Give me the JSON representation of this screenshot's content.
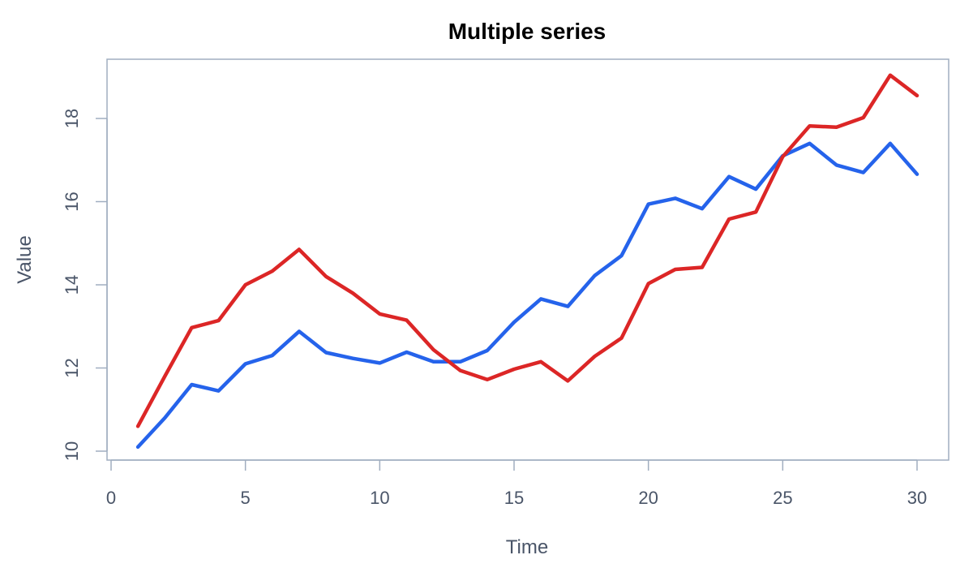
{
  "chart_data": {
    "type": "line",
    "title": "Multiple series",
    "xlabel": "Time",
    "ylabel": "Value",
    "xlim": [
      0,
      31
    ],
    "ylim": [
      9.8,
      19.4
    ],
    "x_ticks": [
      0,
      5,
      10,
      15,
      20,
      25,
      30
    ],
    "y_ticks": [
      10,
      12,
      14,
      16,
      18
    ],
    "grid": false,
    "legend": "none",
    "x": [
      1,
      2,
      3,
      4,
      5,
      6,
      7,
      8,
      9,
      10,
      11,
      12,
      13,
      14,
      15,
      16,
      17,
      18,
      19,
      20,
      21,
      22,
      23,
      24,
      25,
      26,
      27,
      28,
      29,
      30
    ],
    "series": [
      {
        "color": "#2563eb",
        "values": [
          10.1,
          10.8,
          11.6,
          11.45,
          12.1,
          12.3,
          12.88,
          12.37,
          12.23,
          12.12,
          12.38,
          12.15,
          12.15,
          12.42,
          13.1,
          13.66,
          13.48,
          14.22,
          14.7,
          15.94,
          16.08,
          15.83,
          16.6,
          16.3,
          17.1,
          17.4,
          16.88,
          16.7,
          17.4,
          16.66
        ]
      },
      {
        "color": "#dc2626",
        "values": [
          10.6,
          11.8,
          12.97,
          13.14,
          14.0,
          14.33,
          14.85,
          14.2,
          13.8,
          13.3,
          13.15,
          12.44,
          11.94,
          11.72,
          11.97,
          12.15,
          11.69,
          12.28,
          12.72,
          14.03,
          14.37,
          14.42,
          15.58,
          15.75,
          17.08,
          17.82,
          17.79,
          18.02,
          19.04,
          18.55
        ]
      }
    ]
  }
}
